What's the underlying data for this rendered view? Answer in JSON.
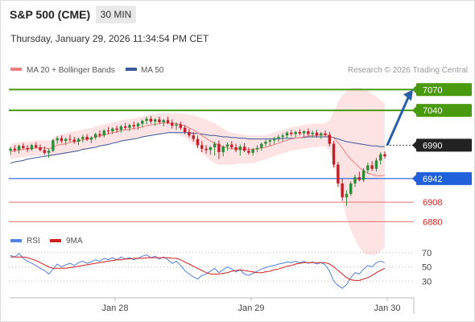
{
  "header": {
    "title": "S&P 500 (CME)",
    "timeframe": "30 MIN"
  },
  "timestamp": "Thursday, January 29, 2026 11:34:54 PM CET",
  "legend": {
    "ma20_label": "MA 20 + Bollinger Bands",
    "ma50_label": "MA 50",
    "credit": "Research © 2026 Trading Central"
  },
  "rsi_legend": {
    "rsi_label": "RSI",
    "ma_label": "9MA"
  },
  "colors": {
    "ma20": "#f08080",
    "ma50": "#3a5a9a",
    "band_fill": "#fde0e0",
    "up_candle": "#2e8b3a",
    "down_candle": "#c0202a",
    "resistance": "#4a9a10",
    "pivot": "#2060d8",
    "support": "#e87070",
    "last_price_badge": "#222222",
    "arrow": "#2a5fa8",
    "rsi": "#5080e0",
    "rsi_ma": "#d02020"
  },
  "chart_data": [
    {
      "type": "candlestick",
      "title": "S&P 500 (CME)",
      "timeframe": "30 MIN",
      "ylim": [
        6870,
        7090
      ],
      "x_ticks": [
        "Jan 28",
        "Jan 29",
        "Jan 30"
      ],
      "ohlc": [
        [
          6982,
          6988,
          6976,
          6985
        ],
        [
          6985,
          6990,
          6980,
          6983
        ],
        [
          6983,
          6991,
          6978,
          6989
        ],
        [
          6989,
          6993,
          6984,
          6986
        ],
        [
          6986,
          6990,
          6980,
          6984
        ],
        [
          6984,
          6992,
          6982,
          6990
        ],
        [
          6990,
          6994,
          6985,
          6987
        ],
        [
          6987,
          6991,
          6981,
          6983
        ],
        [
          6983,
          6988,
          6976,
          6979
        ],
        [
          6979,
          6985,
          6972,
          6982
        ],
        [
          6982,
          6999,
          6980,
          6997
        ],
        [
          6997,
          7003,
          6992,
          7000
        ],
        [
          7000,
          7004,
          6993,
          6996
        ],
        [
          6996,
          7001,
          6990,
          6999
        ],
        [
          6999,
          7005,
          6995,
          6998
        ],
        [
          6998,
          7002,
          6992,
          6995
        ],
        [
          6995,
          7001,
          6990,
          6999
        ],
        [
          6999,
          7005,
          6994,
          7002
        ],
        [
          7002,
          7006,
          6996,
          6998
        ],
        [
          6998,
          7003,
          6993,
          7001
        ],
        [
          7001,
          7008,
          6998,
          7006
        ],
        [
          7006,
          7011,
          7001,
          7004
        ],
        [
          7004,
          7013,
          7001,
          7011
        ],
        [
          7011,
          7016,
          7006,
          7010
        ],
        [
          7010,
          7016,
          7006,
          7014
        ],
        [
          7014,
          7018,
          7008,
          7012
        ],
        [
          7012,
          7019,
          7008,
          7017
        ],
        [
          7017,
          7022,
          7012,
          7015
        ],
        [
          7015,
          7021,
          7010,
          7019
        ],
        [
          7019,
          7024,
          7013,
          7017
        ],
        [
          7017,
          7023,
          7012,
          7021
        ],
        [
          7021,
          7027,
          7016,
          7025
        ],
        [
          7025,
          7031,
          7020,
          7028
        ],
        [
          7028,
          7032,
          7021,
          7024
        ],
        [
          7024,
          7029,
          7018,
          7027
        ],
        [
          7027,
          7031,
          7021,
          7023
        ],
        [
          7023,
          7028,
          7017,
          7026
        ],
        [
          7026,
          7031,
          7020,
          7022
        ],
        [
          7022,
          7027,
          7014,
          7018
        ],
        [
          7018,
          7023,
          7012,
          7020
        ],
        [
          7020,
          7024,
          7012,
          7015
        ],
        [
          7015,
          7019,
          7006,
          7009
        ],
        [
          7009,
          7014,
          7001,
          7004
        ],
        [
          7004,
          7009,
          6995,
          6999
        ],
        [
          6999,
          7004,
          6986,
          6990
        ],
        [
          6990,
          6996,
          6980,
          6985
        ],
        [
          6985,
          6990,
          6978,
          6983
        ],
        [
          6983,
          6989,
          6976,
          6987
        ],
        [
          6987,
          6995,
          6975,
          6992
        ],
        [
          6992,
          6997,
          6970,
          6980
        ],
        [
          6980,
          6990,
          6974,
          6988
        ],
        [
          6988,
          6994,
          6982,
          6991
        ],
        [
          6991,
          6996,
          6984,
          6987
        ],
        [
          6987,
          6992,
          6980,
          6983
        ],
        [
          6983,
          6991,
          6975,
          6988
        ],
        [
          6988,
          6993,
          6980,
          6982
        ],
        [
          6982,
          6987,
          6976,
          6979
        ],
        [
          6979,
          6986,
          6975,
          6984
        ],
        [
          6984,
          6990,
          6980,
          6986
        ],
        [
          6986,
          6994,
          6982,
          6992
        ],
        [
          6992,
          6998,
          6988,
          6995
        ],
        [
          6995,
          7000,
          6989,
          6997
        ],
        [
          6997,
          7002,
          6992,
          7000
        ],
        [
          7000,
          7005,
          6995,
          7002
        ],
        [
          7002,
          7007,
          6996,
          7004
        ],
        [
          7004,
          7010,
          7000,
          7008
        ],
        [
          7008,
          7012,
          7003,
          7006
        ],
        [
          7006,
          7011,
          7001,
          7009
        ],
        [
          7009,
          7013,
          7004,
          7007
        ],
        [
          7007,
          7012,
          7002,
          7010
        ],
        [
          7010,
          7014,
          7003,
          7006
        ],
        [
          7006,
          7011,
          7001,
          7008
        ],
        [
          7008,
          7012,
          7001,
          7004
        ],
        [
          7004,
          7009,
          6999,
          7007
        ],
        [
          7007,
          7011,
          7002,
          7005
        ],
        [
          7005,
          7009,
          6988,
          6992
        ],
        [
          6992,
          6996,
          6958,
          6962
        ],
        [
          6962,
          6966,
          6930,
          6935
        ],
        [
          6935,
          6942,
          6910,
          6915
        ],
        [
          6915,
          6925,
          6903,
          6920
        ],
        [
          6920,
          6938,
          6917,
          6935
        ],
        [
          6935,
          6948,
          6930,
          6944
        ],
        [
          6944,
          6952,
          6938,
          6940
        ],
        [
          6940,
          6957,
          6937,
          6954
        ],
        [
          6954,
          6965,
          6949,
          6961
        ],
        [
          6961,
          6967,
          6953,
          6956
        ],
        [
          6956,
          6972,
          6952,
          6968
        ],
        [
          6968,
          6980,
          6962,
          6977
        ],
        [
          6977,
          6981,
          6971,
          6974
        ]
      ],
      "ma20": [
        6981,
        6982,
        6983,
        6984,
        6985,
        6985,
        6986,
        6986,
        6986,
        6985,
        6987,
        6990,
        6991,
        6992,
        6994,
        6995,
        6996,
        6998,
        6999,
        7000,
        7002,
        7003,
        7005,
        7006,
        7008,
        7009,
        7011,
        7012,
        7013,
        7014,
        7015,
        7016,
        7018,
        7019,
        7020,
        7021,
        7022,
        7022,
        7022,
        7021,
        7020,
        7018,
        7015,
        7012,
        7008,
        7004,
        7000,
        6996,
        6993,
        6990,
        6988,
        6986,
        6985,
        6985,
        6985,
        6984,
        6984,
        6984,
        6985,
        6986,
        6987,
        6989,
        6991,
        6993,
        6995,
        6997,
        6999,
        7000,
        7001,
        7002,
        7003,
        7004,
        7004,
        7005,
        7005,
        7004,
        7000,
        6994,
        6986,
        6977,
        6970,
        6964,
        6958,
        6953,
        6950,
        6948,
        6946,
        6946,
        6947
      ],
      "ma50": [
        6964,
        6966,
        6967,
        6968,
        6970,
        6971,
        6972,
        6973,
        6974,
        6975,
        6976,
        6977,
        6978,
        6979,
        6980,
        6981,
        6982,
        6984,
        6985,
        6986,
        6987,
        6989,
        6990,
        6991,
        6993,
        6994,
        6996,
        6997,
        6998,
        6999,
        7000,
        7002,
        7003,
        7004,
        7005,
        7006,
        7007,
        7008,
        7008,
        7008,
        7008,
        7008,
        7008,
        7007,
        7007,
        7006,
        7005,
        7004,
        7004,
        7003,
        7002,
        7002,
        7001,
        7001,
        7000,
        7000,
        6999,
        6999,
        6999,
        6999,
        6999,
        6999,
        6999,
        6999,
        7000,
        7000,
        7000,
        7000,
        7001,
        7001,
        7002,
        7002,
        7002,
        7002,
        7002,
        7002,
        7001,
        6999,
        6997,
        6995,
        6994,
        6993,
        6992,
        6991,
        6990,
        6989,
        6989,
        6988,
        6988
      ],
      "bb_upper": [
        6992,
        6993,
        6994,
        6995,
        6996,
        6996,
        6997,
        6997,
        6997,
        6996,
        7000,
        7004,
        7006,
        7007,
        7009,
        7010,
        7011,
        7013,
        7014,
        7015,
        7017,
        7018,
        7020,
        7021,
        7023,
        7024,
        7026,
        7027,
        7028,
        7029,
        7030,
        7031,
        7033,
        7034,
        7035,
        7036,
        7036,
        7036,
        7036,
        7036,
        7036,
        7035,
        7034,
        7033,
        7031,
        7029,
        7027,
        7024,
        7022,
        7018,
        7014,
        7010,
        7008,
        7007,
        7006,
        7005,
        7004,
        7004,
        7004,
        7004,
        7005,
        7006,
        7008,
        7010,
        7012,
        7014,
        7016,
        7017,
        7018,
        7019,
        7020,
        7021,
        7021,
        7021,
        7022,
        7026,
        7038,
        7052,
        7062,
        7068,
        7072,
        7073,
        7073,
        7071,
        7068,
        7064,
        7060,
        7055,
        7050
      ],
      "bb_lower": [
        6970,
        6971,
        6972,
        6973,
        6974,
        6974,
        6975,
        6975,
        6975,
        6974,
        6974,
        6976,
        6976,
        6977,
        6979,
        6980,
        6981,
        6983,
        6984,
        6985,
        6987,
        6988,
        6990,
        6991,
        6993,
        6994,
        6996,
        6997,
        6998,
        6999,
        7000,
        7001,
        7003,
        7004,
        7005,
        7006,
        7008,
        7008,
        7008,
        7006,
        7004,
        7001,
        6996,
        6991,
        6985,
        6979,
        6973,
        6968,
        6964,
        6962,
        6962,
        6962,
        6962,
        6963,
        6964,
        6963,
        6964,
        6964,
        6966,
        6968,
        6969,
        6972,
        6974,
        6976,
        6978,
        6980,
        6982,
        6983,
        6984,
        6985,
        6986,
        6987,
        6987,
        6989,
        6988,
        6982,
        6962,
        6936,
        6910,
        6886,
        6868,
        6855,
        6843,
        6835,
        6832,
        6832,
        6832,
        6837,
        6844
      ],
      "levels": [
        {
          "value": 7070,
          "label": "7070",
          "kind": "resistance"
        },
        {
          "value": 7040,
          "label": "7040",
          "kind": "resistance"
        },
        {
          "value": 6990,
          "label": "6990",
          "kind": "last"
        },
        {
          "value": 6942,
          "label": "6942",
          "kind": "pivot"
        },
        {
          "value": 6908,
          "label": "6908",
          "kind": "support"
        },
        {
          "value": 6880,
          "label": "6880",
          "kind": "support"
        }
      ],
      "projection": {
        "from": 6990,
        "to": 7070
      }
    },
    {
      "type": "line",
      "title": "RSI",
      "ylim": [
        10,
        80
      ],
      "y_ticks": [
        70,
        50,
        30
      ],
      "series": [
        {
          "name": "RSI",
          "values": [
            66,
            64,
            69,
            62,
            58,
            55,
            52,
            48,
            45,
            40,
            47,
            54,
            50,
            53,
            55,
            52,
            56,
            58,
            55,
            57,
            60,
            58,
            62,
            60,
            63,
            60,
            64,
            61,
            63,
            60,
            62,
            65,
            67,
            63,
            65,
            61,
            64,
            60,
            55,
            58,
            52,
            45,
            40,
            36,
            33,
            38,
            40,
            44,
            48,
            42,
            46,
            50,
            47,
            43,
            46,
            40,
            38,
            41,
            44,
            47,
            49,
            51,
            52,
            54,
            55,
            57,
            56,
            58,
            56,
            58,
            55,
            57,
            54,
            56,
            53,
            44,
            30,
            24,
            20,
            25,
            35,
            42,
            40,
            47,
            52,
            50,
            56,
            58,
            56
          ]
        },
        {
          "name": "9MA",
          "values": [
            64,
            64,
            64,
            64,
            63,
            61,
            59,
            56,
            53,
            50,
            48,
            48,
            48,
            48,
            49,
            50,
            51,
            52,
            53,
            54,
            55,
            56,
            57,
            58,
            59,
            60,
            60,
            61,
            61,
            62,
            62,
            62,
            63,
            63,
            63,
            63,
            63,
            63,
            62,
            62,
            60,
            57,
            54,
            51,
            48,
            45,
            42,
            40,
            40,
            40,
            41,
            42,
            44,
            45,
            46,
            45,
            44,
            43,
            42,
            42,
            43,
            44,
            46,
            47,
            49,
            51,
            52,
            54,
            55,
            56,
            56,
            56,
            56,
            56,
            56,
            54,
            50,
            45,
            40,
            35,
            32,
            31,
            31,
            33,
            35,
            38,
            42,
            45,
            48
          ]
        }
      ]
    }
  ]
}
